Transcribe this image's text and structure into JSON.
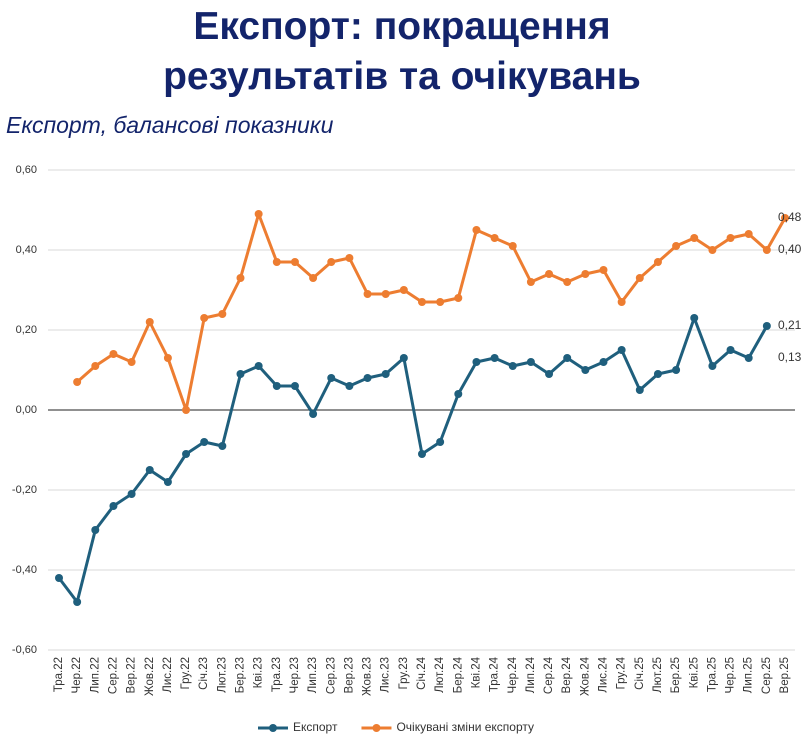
{
  "chart_data": {
    "type": "line",
    "title": "Експорт: покращення\nрезультатів та очікувань",
    "subtitle": "Експорт, балансові показники",
    "categories": [
      "Тра.22",
      "Чер.22",
      "Лип.22",
      "Сер.22",
      "Вер.22",
      "Жов.22",
      "Лис.22",
      "Гру.22",
      "Січ.23",
      "Лют.23",
      "Бер.23",
      "Кві.23",
      "Тра.23",
      "Чер.23",
      "Лип.23",
      "Сер.23",
      "Вер.23",
      "Жов.23",
      "Лис.23",
      "Гру.23",
      "Січ.24",
      "Лют.24",
      "Бер.24",
      "Кві.24",
      "Тра.24",
      "Чер.24",
      "Лип.24",
      "Сер.24",
      "Вер.24",
      "Жов.24",
      "Лис.24",
      "Гру.24",
      "Січ.25",
      "Лют.25",
      "Бер.25",
      "Кві.25",
      "Тра.25",
      "Чер.25",
      "Лип.25",
      "Сер.25",
      "Вер.25"
    ],
    "series": [
      {
        "name": "Експорт",
        "color": "#1f5f7d",
        "values": [
          -0.42,
          -0.48,
          -0.3,
          -0.24,
          -0.21,
          -0.15,
          -0.18,
          -0.11,
          -0.08,
          -0.09,
          0.09,
          0.11,
          0.06,
          0.06,
          -0.01,
          0.08,
          0.06,
          0.08,
          0.09,
          0.13,
          -0.11,
          -0.08,
          0.04,
          0.12,
          0.13,
          0.11,
          0.12,
          0.09,
          0.13,
          0.1,
          0.12,
          0.15,
          0.05,
          0.09,
          0.1,
          0.23,
          0.11,
          0.15,
          0.13,
          0.21,
          null
        ],
        "value_labels": [
          null,
          null,
          null,
          null,
          null,
          null,
          null,
          null,
          null,
          null,
          null,
          null,
          null,
          null,
          null,
          null,
          null,
          null,
          null,
          null,
          null,
          null,
          null,
          null,
          null,
          null,
          null,
          null,
          null,
          null,
          null,
          null,
          null,
          null,
          null,
          null,
          null,
          null,
          "0,13",
          "0,21",
          null
        ]
      },
      {
        "name": "Очікувані зміни експорту",
        "color": "#ed7d31",
        "values": [
          null,
          0.07,
          0.11,
          0.14,
          0.12,
          0.22,
          0.13,
          0.0,
          0.23,
          0.24,
          0.33,
          0.49,
          0.37,
          0.37,
          0.33,
          0.37,
          0.38,
          0.29,
          0.29,
          0.3,
          0.27,
          0.27,
          0.28,
          0.45,
          0.43,
          0.41,
          0.32,
          0.34,
          0.32,
          0.34,
          0.35,
          0.27,
          0.33,
          0.37,
          0.41,
          0.43,
          0.4,
          0.43,
          0.44,
          0.4,
          0.48
        ],
        "value_labels": [
          null,
          null,
          null,
          null,
          null,
          null,
          null,
          null,
          null,
          null,
          null,
          null,
          null,
          null,
          null,
          null,
          null,
          null,
          null,
          null,
          null,
          null,
          null,
          null,
          null,
          null,
          null,
          null,
          null,
          null,
          null,
          null,
          null,
          null,
          null,
          null,
          null,
          null,
          null,
          "0,40",
          "0,48"
        ]
      }
    ],
    "ylim": [
      -0.6,
      0.6
    ],
    "yticks": [
      {
        "value": -0.6,
        "label": "-0,60"
      },
      {
        "value": -0.4,
        "label": "-0,40"
      },
      {
        "value": -0.2,
        "label": "-0,20"
      },
      {
        "value": 0,
        "label": "0,00"
      },
      {
        "value": 0.2,
        "label": "0,20"
      },
      {
        "value": 0.4,
        "label": "0,40"
      },
      {
        "value": 0.6,
        "label": "0,60"
      }
    ],
    "grid": true,
    "legend": "bottom"
  }
}
